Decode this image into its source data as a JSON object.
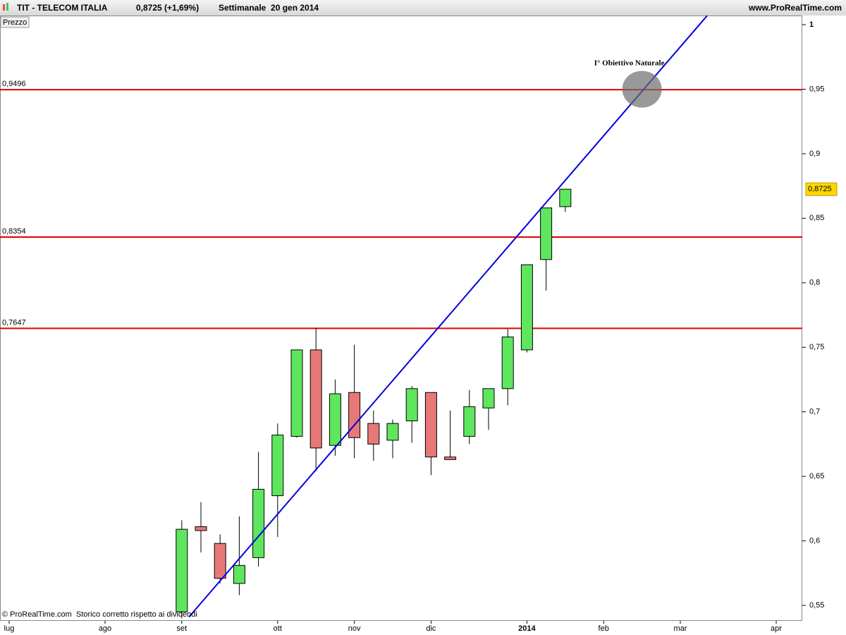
{
  "header": {
    "symbol": "TIT - TELECOM ITALIA",
    "quote": "0,8725 (+1,69%)",
    "period": "Settimanale  20 gen 2014",
    "site": "www.ProRealTime.com"
  },
  "chart_data": {
    "type": "candlestick",
    "panel_label": "Prezzo",
    "x": [
      9,
      10,
      11,
      12,
      13,
      14,
      15,
      16,
      17,
      18,
      19,
      20,
      21,
      22,
      23,
      24,
      25,
      26,
      27,
      28,
      29
    ],
    "open": [
      0.545,
      0.611,
      0.598,
      0.567,
      0.587,
      0.635,
      0.681,
      0.748,
      0.674,
      0.715,
      0.691,
      0.678,
      0.693,
      0.715,
      0.665,
      0.681,
      0.703,
      0.718,
      0.748,
      0.818,
      0.859
    ],
    "high": [
      0.616,
      0.63,
      0.605,
      0.619,
      0.669,
      0.691,
      0.748,
      0.765,
      0.725,
      0.752,
      0.701,
      0.694,
      0.72,
      0.715,
      0.701,
      0.717,
      0.718,
      0.764,
      0.814,
      0.858,
      0.8725
    ],
    "low": [
      0.54,
      0.591,
      0.567,
      0.558,
      0.58,
      0.603,
      0.68,
      0.654,
      0.666,
      0.664,
      0.662,
      0.664,
      0.676,
      0.651,
      0.663,
      0.675,
      0.686,
      0.705,
      0.746,
      0.794,
      0.855
    ],
    "close": [
      0.609,
      0.608,
      0.571,
      0.581,
      0.64,
      0.682,
      0.748,
      0.672,
      0.714,
      0.68,
      0.675,
      0.691,
      0.718,
      0.665,
      0.663,
      0.704,
      0.718,
      0.758,
      0.814,
      0.858,
      0.8725
    ],
    "up_color": "#5ee65e",
    "down_color": "#e87878",
    "xlim": [
      -0.478,
      41.36
    ],
    "xticks": [
      {
        "value": 0,
        "label": "lug"
      },
      {
        "value": 5,
        "label": "ago"
      },
      {
        "value": 9,
        "label": "set"
      },
      {
        "value": 14,
        "label": "ott"
      },
      {
        "value": 18,
        "label": "nov"
      },
      {
        "value": 22,
        "label": "dic"
      },
      {
        "value": 27,
        "label": "2014"
      },
      {
        "value": 31,
        "label": "feb"
      },
      {
        "value": 35,
        "label": "mar"
      },
      {
        "value": 40,
        "label": "apr"
      }
    ],
    "ylim": [
      0.538,
      1.0071
    ],
    "yticks": [
      {
        "value": 0.55,
        "label": "0,55"
      },
      {
        "value": 0.6,
        "label": "0,6"
      },
      {
        "value": 0.65,
        "label": "0,65"
      },
      {
        "value": 0.7,
        "label": "0,7"
      },
      {
        "value": 0.75,
        "label": "0,75"
      },
      {
        "value": 0.8,
        "label": "0,8"
      },
      {
        "value": 0.85,
        "label": "0,85"
      },
      {
        "value": 0.9,
        "label": "0,9"
      },
      {
        "value": 0.95,
        "label": "0,95"
      },
      1
    ],
    "levels": [
      {
        "value": 0.9496,
        "label": "0,9496"
      },
      {
        "value": 0.8354,
        "label": "0,8354"
      },
      {
        "value": 0.7647,
        "label": "0,7647"
      }
    ],
    "level_color": "#e00000",
    "trendline": {
      "x": [
        9.375,
        36.4
      ],
      "y": [
        0.541,
        1.007
      ],
      "color": "#0000e0"
    },
    "target": {
      "x": 33,
      "y": 0.95,
      "label": "I° Obiettivo Naturale"
    },
    "last_price": {
      "value": 0.8725,
      "label": "0,8725"
    },
    "footer": {
      "copyright": "© ProRealTime.com",
      "note": "Storico corretto rispetto ai dividendi"
    }
  }
}
